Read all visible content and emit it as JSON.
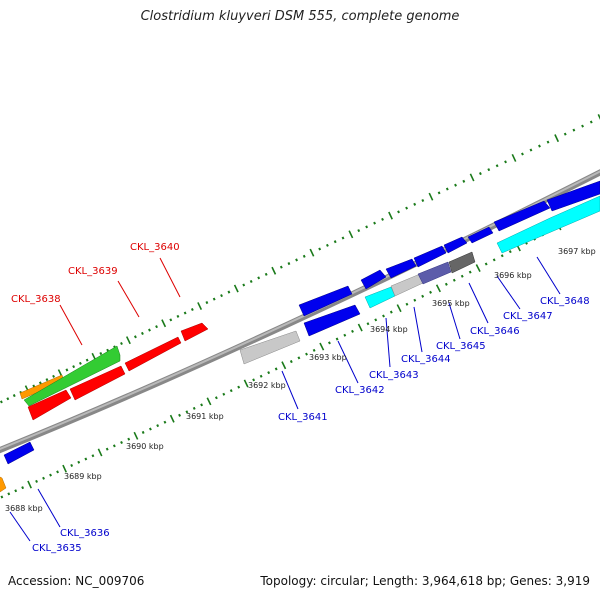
{
  "title": "Clostridium kluyveri DSM 555, complete genome",
  "footer": {
    "accession": "Accession: NC_009706",
    "summary": "Topology: circular; Length: 3,964,618 bp; Genes: 3,919"
  },
  "colors": {
    "backbone": "#888888",
    "tick": "#1a7a1a",
    "red": "#ff0000",
    "green": "#33cc33",
    "orange": "#ff9900",
    "blue": "#0000ee",
    "cyan": "#00ffff",
    "lightgray": "#c8c8c8",
    "slate": "#5c5caa",
    "darkgray": "#666666",
    "label_red": "#dd0000",
    "label_blue": "#0000cc"
  },
  "kbp_labels": [
    "3688 kbp",
    "3689 kbp",
    "3690 kbp",
    "3691 kbp",
    "3692 kbp",
    "3693 kbp",
    "3694 kbp",
    "3695 kbp",
    "3696 kbp",
    "3697 kbp"
  ],
  "gene_labels": {
    "top": [
      "CKL_3638",
      "CKL_3639",
      "CKL_3640"
    ],
    "bottom": [
      "CKL_3635",
      "CKL_3636",
      "CKL_3641",
      "CKL_3642",
      "CKL_3643",
      "CKL_3644",
      "CKL_3645",
      "CKL_3646",
      "CKL_3647",
      "CKL_3648"
    ]
  }
}
